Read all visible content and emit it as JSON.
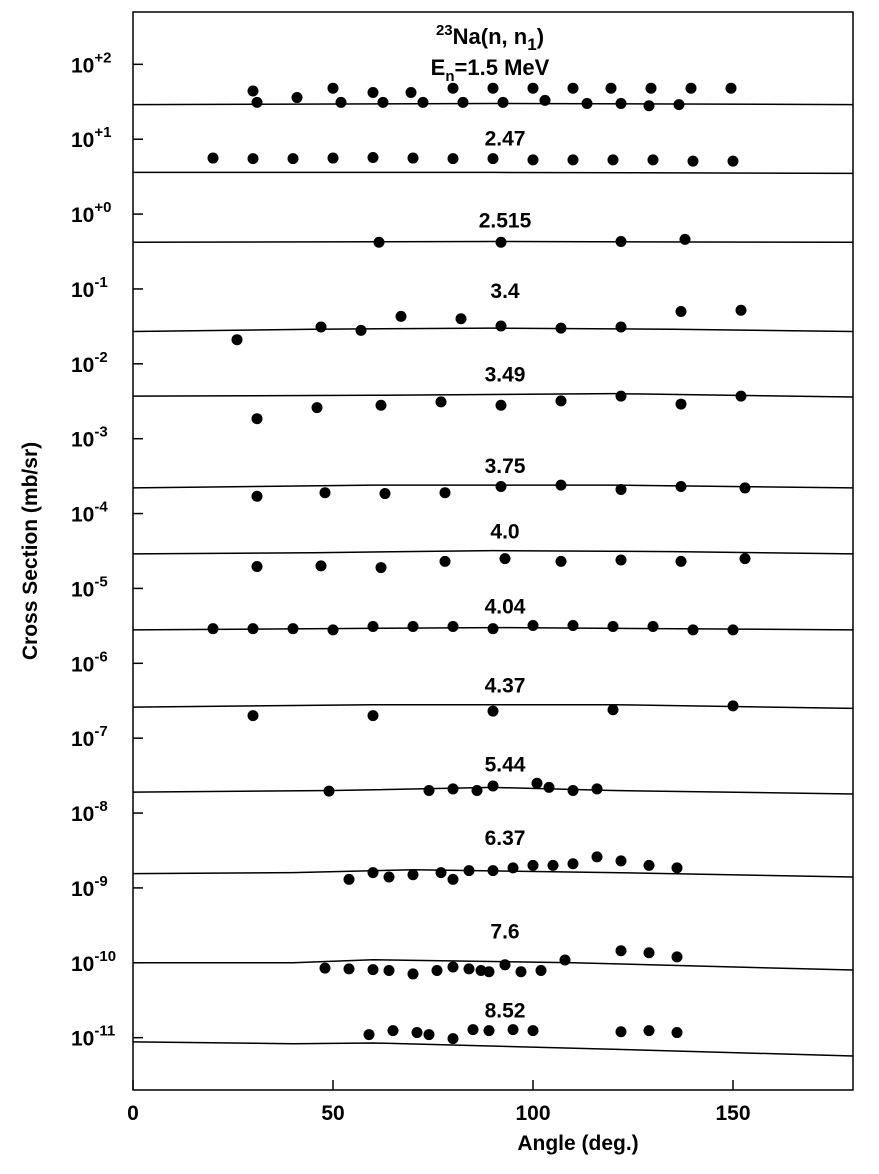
{
  "chart_data": {
    "type": "scatter",
    "title_parts": [
      "23",
      "Na(n, n",
      "1",
      ")"
    ],
    "subtitle_parts": [
      "E",
      "n",
      "=1.5  MeV"
    ],
    "x_label": "Angle  (deg.)",
    "y_label": "Cross Section  (mb/sr)",
    "xlim": [
      0,
      180
    ],
    "xticks": [
      0,
      50,
      100,
      150
    ],
    "ylim": [
      2e-12,
      500
    ],
    "log_y": true,
    "yticks": [
      {
        "value": 100,
        "label": "10+2"
      },
      {
        "value": 10,
        "label": "10+1"
      },
      {
        "value": 1,
        "label": "10+0"
      },
      {
        "value": 0.1,
        "label": "10-1"
      },
      {
        "value": 0.01,
        "label": "10-2"
      },
      {
        "value": 0.001,
        "label": "10-3"
      },
      {
        "value": 0.0001,
        "label": "10-4"
      },
      {
        "value": 1e-05,
        "label": "10-5"
      },
      {
        "value": 1e-06,
        "label": "10-6"
      },
      {
        "value": 1e-07,
        "label": "10-7"
      },
      {
        "value": 1e-08,
        "label": "10-8"
      },
      {
        "value": 1e-09,
        "label": "10-9"
      },
      {
        "value": 1e-10,
        "label": "10-10"
      },
      {
        "value": 1e-11,
        "label": "10-11"
      }
    ],
    "color": "#000000",
    "series": [
      {
        "x": [
          30,
          31,
          41,
          50,
          52,
          60,
          62.5,
          69.5,
          72.5,
          80,
          82.5,
          90,
          92.5,
          100,
          103,
          110,
          113.5,
          119.5,
          122,
          129.5,
          129,
          136.5,
          139.5,
          149.5
        ],
        "values": [
          44,
          31,
          36,
          48,
          31,
          42,
          31,
          42,
          31,
          48,
          31,
          48,
          31,
          48,
          33,
          48,
          30,
          48,
          30,
          48,
          28,
          29,
          48,
          48
        ],
        "fit_x": [
          0,
          90,
          180
        ],
        "fit_values": [
          29,
          30,
          29
        ]
      },
      {
        "label": "2.47",
        "x": [
          20,
          30,
          40,
          50,
          60,
          70,
          80,
          90,
          100,
          110,
          120,
          130,
          140,
          150
        ],
        "values": [
          5.6,
          5.5,
          5.5,
          5.6,
          5.7,
          5.6,
          5.5,
          5.5,
          5.3,
          5.3,
          5.3,
          5.3,
          5.1,
          5.1
        ],
        "fit_x": [
          0,
          90,
          180
        ],
        "fit_values": [
          3.6,
          3.6,
          3.5
        ]
      },
      {
        "label": "2.515",
        "x": [
          61.5,
          92,
          122,
          138
        ],
        "values": [
          0.42,
          0.42,
          0.43,
          0.46
        ],
        "fit_x": [
          0,
          90,
          180
        ],
        "fit_values": [
          0.42,
          0.43,
          0.42
        ]
      },
      {
        "label": "3.4",
        "x": [
          26,
          47,
          57,
          67,
          82,
          92,
          107,
          122,
          137,
          152
        ],
        "values": [
          0.021,
          0.031,
          0.028,
          0.043,
          0.04,
          0.032,
          0.03,
          0.031,
          0.05,
          0.052
        ],
        "fit_x": [
          0,
          45,
          90,
          135,
          180
        ],
        "fit_values": [
          0.027,
          0.029,
          0.03,
          0.029,
          0.027
        ]
      },
      {
        "label": "3.49",
        "x": [
          31,
          46,
          62,
          77,
          92,
          107,
          122,
          137,
          152
        ],
        "values": [
          0.00185,
          0.0026,
          0.0028,
          0.0031,
          0.0028,
          0.0032,
          0.0037,
          0.0029,
          0.0037
        ],
        "fit_x": [
          0,
          60,
          120,
          180
        ],
        "fit_values": [
          0.0037,
          0.0038,
          0.004,
          0.0036
        ]
      },
      {
        "label": "3.75",
        "x": [
          31,
          48,
          63,
          78,
          92,
          107,
          122,
          137,
          153
        ],
        "values": [
          0.00017,
          0.00019,
          0.000185,
          0.00019,
          0.00023,
          0.00024,
          0.00021,
          0.00023,
          0.00022
        ],
        "fit_x": [
          0,
          60,
          90,
          120,
          180
        ],
        "fit_values": [
          0.00022,
          0.00024,
          0.00024,
          0.00024,
          0.00022
        ]
      },
      {
        "label": "4.0",
        "x": [
          31,
          47,
          62,
          78,
          93,
          107,
          122,
          137,
          153
        ],
        "values": [
          1.96e-05,
          2e-05,
          1.9e-05,
          2.3e-05,
          2.5e-05,
          2.3e-05,
          2.4e-05,
          2.3e-05,
          2.5e-05
        ],
        "fit_x": [
          0,
          45,
          90,
          135,
          180
        ],
        "fit_values": [
          2.9e-05,
          3e-05,
          3.2e-05,
          3.1e-05,
          2.9e-05
        ]
      },
      {
        "label": "4.04",
        "x": [
          20,
          30,
          40,
          50,
          60,
          70,
          80,
          90,
          100,
          110,
          120,
          130,
          140,
          150
        ],
        "values": [
          2.9e-06,
          2.9e-06,
          2.9e-06,
          2.8e-06,
          3.1e-06,
          3.1e-06,
          3.1e-06,
          2.9e-06,
          3.2e-06,
          3.2e-06,
          3.1e-06,
          3.1e-06,
          2.8e-06,
          2.8e-06
        ],
        "fit_x": [
          0,
          90,
          180
        ],
        "fit_values": [
          2.8e-06,
          3e-06,
          2.8e-06
        ]
      },
      {
        "label": "4.37",
        "x": [
          30,
          60,
          90,
          120,
          150
        ],
        "values": [
          2e-07,
          2e-07,
          2.3e-07,
          2.4e-07,
          2.7e-07
        ],
        "fit_x": [
          0,
          60,
          120,
          180
        ],
        "fit_values": [
          2.6e-07,
          2.8e-07,
          2.8e-07,
          2.5e-07
        ]
      },
      {
        "label": "5.44",
        "x": [
          49,
          74,
          80,
          86,
          90,
          101,
          104,
          110,
          116
        ],
        "values": [
          1.96e-08,
          2e-08,
          2.1e-08,
          2e-08,
          2.3e-08,
          2.5e-08,
          2.2e-08,
          2e-08,
          2.1e-08
        ],
        "fit_x": [
          0,
          50,
          90,
          120,
          180
        ],
        "fit_values": [
          1.9e-08,
          2e-08,
          2.2e-08,
          2e-08,
          1.8e-08
        ]
      },
      {
        "label": "6.37",
        "x": [
          54,
          60,
          64,
          70,
          77,
          80,
          84,
          90,
          95,
          100,
          105,
          110,
          116,
          122,
          129,
          136
        ],
        "values": [
          1.3e-09,
          1.6e-09,
          1.4e-09,
          1.5e-09,
          1.6e-09,
          1.3e-09,
          1.7e-09,
          1.7e-09,
          1.85e-09,
          2e-09,
          2e-09,
          2.1e-09,
          2.6e-09,
          2.3e-09,
          2e-09,
          1.85e-09
        ],
        "fit_x": [
          0,
          40,
          70,
          120,
          180
        ],
        "fit_values": [
          1.55e-09,
          1.6e-09,
          1.75e-09,
          1.6e-09,
          1.4e-09
        ]
      },
      {
        "label": "7.6",
        "x": [
          48,
          54,
          60,
          64,
          70,
          76,
          80,
          84,
          87,
          89,
          93,
          97,
          102,
          108,
          122,
          129,
          136
        ],
        "values": [
          8.5e-11,
          8.3e-11,
          8.1e-11,
          7.9e-11,
          7.1e-11,
          7.9e-11,
          8.8e-11,
          8.3e-11,
          7.9e-11,
          7.6e-11,
          9.4e-11,
          7.6e-11,
          7.9e-11,
          1.09e-10,
          1.45e-10,
          1.36e-10,
          1.2e-10
        ],
        "fit_x": [
          0,
          40,
          60,
          110,
          180
        ],
        "fit_values": [
          1e-10,
          1e-10,
          1.1e-10,
          1e-10,
          8e-11
        ]
      },
      {
        "label": "8.52",
        "x": [
          59,
          65,
          71,
          74,
          80,
          85,
          89,
          95,
          100,
          122,
          129,
          136
        ],
        "values": [
          1.1e-11,
          1.24e-11,
          1.17e-11,
          1.1e-11,
          9.7e-12,
          1.28e-11,
          1.24e-11,
          1.28e-11,
          1.24e-11,
          1.2e-11,
          1.24e-11,
          1.17e-11
        ],
        "fit_x": [
          0,
          40,
          60,
          120,
          180
        ],
        "fit_values": [
          8.8e-12,
          8.3e-12,
          8.5e-12,
          7e-12,
          5.7e-12
        ]
      }
    ]
  }
}
